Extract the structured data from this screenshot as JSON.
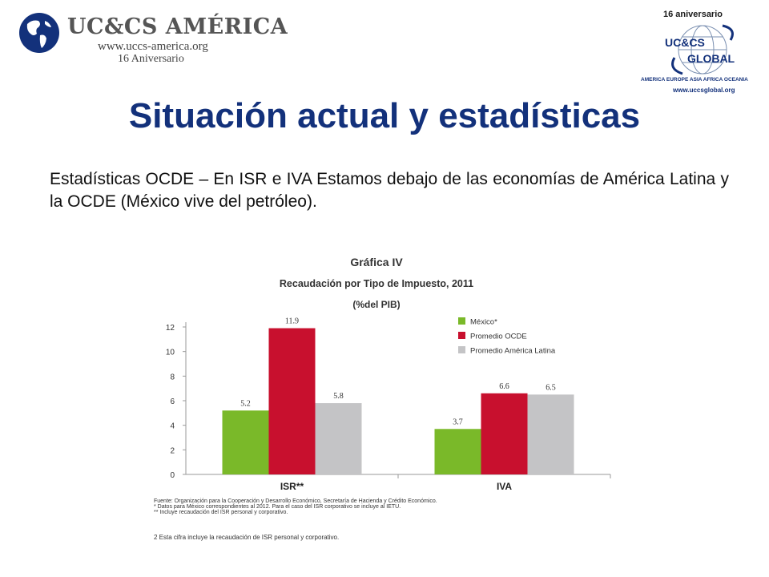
{
  "header": {
    "left_logo": {
      "brand": "UC&CS AMÉRICA",
      "website": "www.uccs-america.org",
      "anniversary": "16 Aniversario"
    },
    "right_logo": {
      "anniversary": "16 aniversario",
      "brand_top": "UC&CS",
      "brand_bottom": "GLOBAL",
      "continents": "AMERICA  EUROPE  ASIA  AFRICA  OCEANIA",
      "website": "www.uccsglobal.org"
    }
  },
  "slide": {
    "title": "Situación actual y estadísticas",
    "intro": "Estadísticas OCDE – En ISR e IVA Estamos debajo de las economías de América Latina y la OCDE (México vive del petróleo)."
  },
  "chart_data": {
    "type": "bar",
    "title": "Gráfica IV",
    "subtitle": "Recaudación por Tipo de Impuesto, 2011",
    "unit": "(%del PIB)",
    "categories": [
      "ISR**",
      "IVA"
    ],
    "series": [
      {
        "name": "México*",
        "color": "#7ab929",
        "values": [
          5.2,
          3.7
        ],
        "labels": [
          "5.2",
          "3.7"
        ]
      },
      {
        "name": "Promedio OCDE",
        "color": "#c8102e",
        "values": [
          11.9,
          6.6
        ],
        "labels": [
          "11.9",
          "6.6"
        ]
      },
      {
        "name": "Promedio América Latina",
        "color": "#c4c4c6",
        "values": [
          5.8,
          6.5
        ],
        "labels": [
          "5.8",
          "6.5"
        ]
      }
    ],
    "ylim": [
      0,
      12
    ],
    "yticks": [
      "0",
      "2",
      "4",
      "6",
      "8",
      "10",
      "12"
    ],
    "legend_position": "top-right",
    "grid": false,
    "footnotes": [
      "Fuente: Organización para la Cooperación y Desarrollo Económico, Secretaría  de Hacienda y Crédito Económico.",
      "* Datos para México correspondientes al 2012. Para el caso del ISR corporativo se incluye al IETU.",
      "** Incluye recaudación del ISR personal y corporativo."
    ],
    "note": "2  Esta cifra incluye la recaudación de ISR personal y corporativo."
  }
}
